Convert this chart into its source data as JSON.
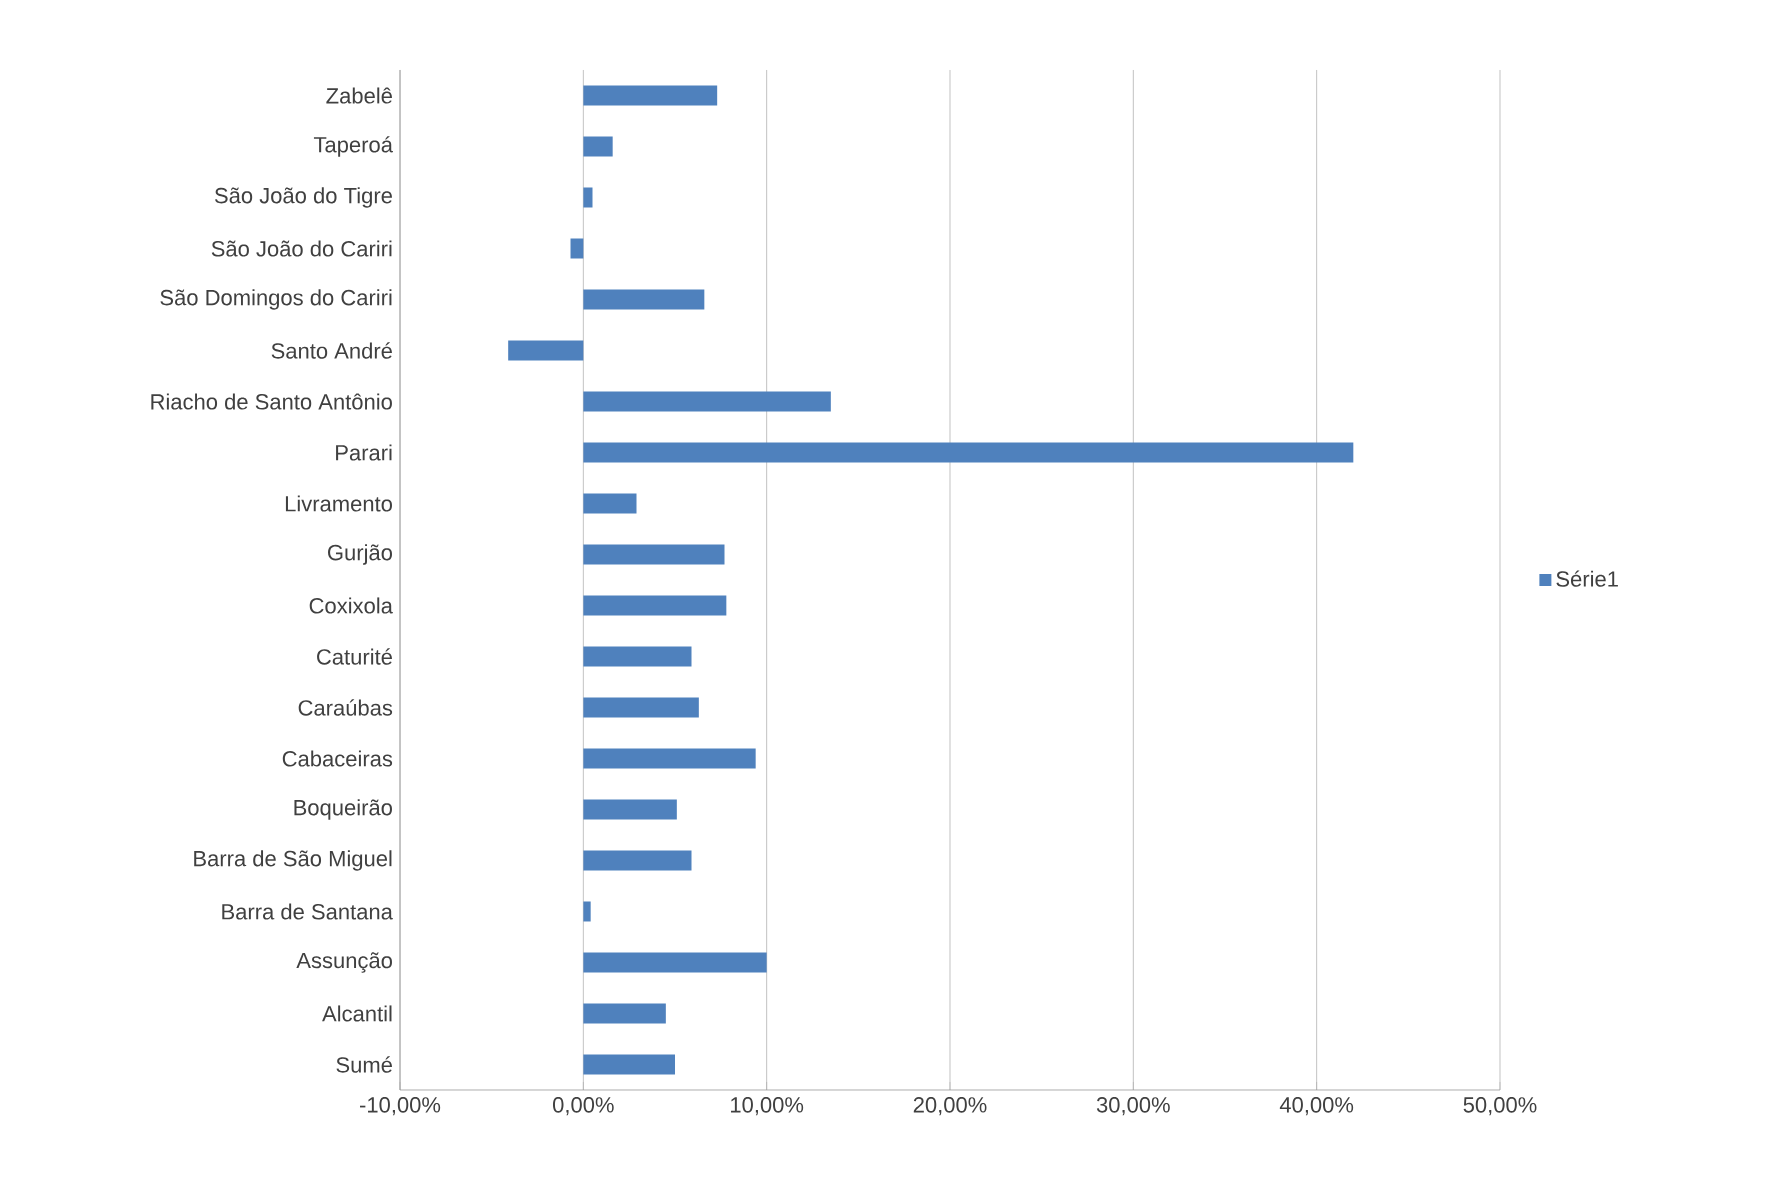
{
  "chart_data": {
    "type": "bar",
    "orientation": "horizontal",
    "categories": [
      "Zabelê",
      "Taperoá",
      "São João do Tigre",
      "São João do Cariri",
      "São Domingos do Cariri",
      "Santo André",
      "Riacho de Santo Antônio",
      "Parari",
      "Livramento",
      "Gurjão",
      "Coxixola",
      "Caturité",
      "Caraúbas",
      "Cabaceiras",
      "Boqueirão",
      "Barra de São Miguel",
      "Barra de Santana",
      "Assunção",
      "Alcantil",
      "Sumé"
    ],
    "series": [
      {
        "name": "Série1",
        "color": "#4f81bd",
        "values": [
          7.3,
          1.6,
          0.5,
          -0.7,
          6.6,
          -4.1,
          13.5,
          42.0,
          2.9,
          7.7,
          7.8,
          5.9,
          6.3,
          9.4,
          5.1,
          5.9,
          0.4,
          10.0,
          4.5,
          5.0
        ]
      }
    ],
    "xlim": [
      -10,
      50
    ],
    "xticks": [
      {
        "value": -10,
        "label": "-10,00%"
      },
      {
        "value": 0,
        "label": "0,00%"
      },
      {
        "value": 10,
        "label": "10,00%"
      },
      {
        "value": 20,
        "label": "20,00%"
      },
      {
        "value": 30,
        "label": "30,00%"
      },
      {
        "value": 40,
        "label": "40,00%"
      },
      {
        "value": 50,
        "label": "50,00%"
      }
    ],
    "grid": "x",
    "legend": "right"
  }
}
